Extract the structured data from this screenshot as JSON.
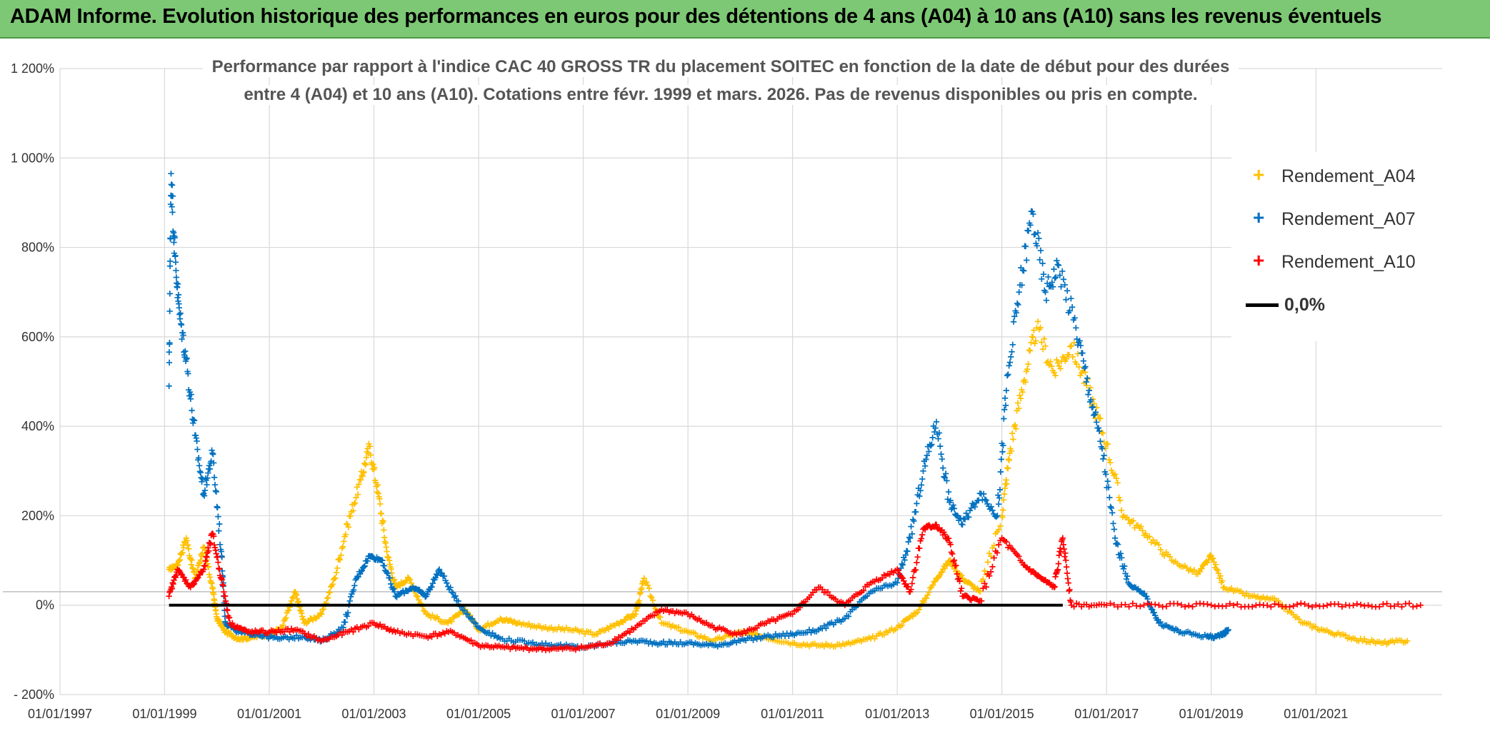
{
  "banner": {
    "title": "ADAM Informe. Evolution historique des performances en euros pour des détentions de 4 ans (A04) à 10 ans (A10) sans les revenus éventuels"
  },
  "colors": {
    "banner_bg": "#7dc874",
    "A04": "#ffc000",
    "A07": "#0070c0",
    "A10": "#ff0000",
    "zero_line": "#000000",
    "grid": "#d9d9d9"
  },
  "chart_data": {
    "type": "scatter",
    "title_line1": "Performance  par rapport à l'indice CAC 40 GROSS TR  du placement SOITEC en fonction de la date de début pour des durées",
    "title_line2": "entre 4 (A04) et 10 ans (A10). Cotations entre févr. 1999 et mars. 2026. Pas de revenus disponibles ou pris en compte.",
    "xlabel": "",
    "ylabel": "",
    "x_range": [
      "1997-01-01",
      "2023-06-01"
    ],
    "x_ticks": [
      "01/01/1997",
      "01/01/1999",
      "01/01/2001",
      "01/01/2003",
      "01/01/2005",
      "01/01/2007",
      "01/01/2009",
      "01/01/2011",
      "01/01/2013",
      "01/01/2015",
      "01/01/2017",
      "01/01/2019",
      "01/01/2021"
    ],
    "y_range": [
      -200,
      1200
    ],
    "y_ticks": [
      "- 200%",
      "0%",
      "200%",
      "400%",
      "600%",
      "800%",
      "1 000%",
      "1 200%"
    ],
    "grid": true,
    "legend_position": "top-right",
    "series": [
      {
        "name": "Rendement_A04",
        "marker": "+",
        "color": "#ffc000",
        "points": [
          [
            "1999-02-01",
            80
          ],
          [
            "1999-04-01",
            90
          ],
          [
            "1999-06-01",
            150
          ],
          [
            "1999-08-01",
            60
          ],
          [
            "1999-10-01",
            130
          ],
          [
            "1999-12-01",
            40
          ],
          [
            "2000-01-01",
            -30
          ],
          [
            "2000-03-01",
            -60
          ],
          [
            "2000-06-01",
            -75
          ],
          [
            "2000-09-01",
            -72
          ],
          [
            "2001-01-01",
            -65
          ],
          [
            "2001-04-01",
            -50
          ],
          [
            "2001-07-01",
            30
          ],
          [
            "2001-09-01",
            -40
          ],
          [
            "2002-01-01",
            -20
          ],
          [
            "2002-04-01",
            60
          ],
          [
            "2002-07-01",
            180
          ],
          [
            "2002-10-01",
            280
          ],
          [
            "2002-12-01",
            355
          ],
          [
            "2003-02-01",
            250
          ],
          [
            "2003-04-01",
            120
          ],
          [
            "2003-06-01",
            40
          ],
          [
            "2003-09-01",
            60
          ],
          [
            "2004-01-01",
            -20
          ],
          [
            "2004-06-01",
            -40
          ],
          [
            "2004-10-01",
            -10
          ],
          [
            "2005-01-01",
            -55
          ],
          [
            "2005-06-01",
            -30
          ],
          [
            "2005-10-01",
            -40
          ],
          [
            "2006-04-01",
            -50
          ],
          [
            "2006-10-01",
            -55
          ],
          [
            "2007-04-01",
            -65
          ],
          [
            "2007-09-01",
            -40
          ],
          [
            "2008-01-01",
            -20
          ],
          [
            "2008-03-01",
            60
          ],
          [
            "2008-07-01",
            -40
          ],
          [
            "2009-01-01",
            -60
          ],
          [
            "2009-07-01",
            -80
          ],
          [
            "2010-01-01",
            -60
          ],
          [
            "2010-06-01",
            -70
          ],
          [
            "2011-01-01",
            -85
          ],
          [
            "2011-07-01",
            -90
          ],
          [
            "2012-01-01",
            -88
          ],
          [
            "2012-07-01",
            -75
          ],
          [
            "2013-01-01",
            -50
          ],
          [
            "2013-06-01",
            -10
          ],
          [
            "2013-10-01",
            60
          ],
          [
            "2014-01-01",
            100
          ],
          [
            "2014-04-01",
            60
          ],
          [
            "2014-08-01",
            30
          ],
          [
            "2015-01-01",
            200
          ],
          [
            "2015-03-01",
            350
          ],
          [
            "2015-06-01",
            500
          ],
          [
            "2015-09-01",
            620
          ],
          [
            "2016-01-01",
            520
          ],
          [
            "2016-05-01",
            580
          ],
          [
            "2016-09-01",
            480
          ],
          [
            "2017-01-01",
            360
          ],
          [
            "2017-05-01",
            200
          ],
          [
            "2017-10-01",
            160
          ],
          [
            "2018-04-01",
            100
          ],
          [
            "2018-10-01",
            70
          ],
          [
            "2019-01-01",
            110
          ],
          [
            "2019-04-01",
            40
          ],
          [
            "2019-10-01",
            20
          ],
          [
            "2020-04-01",
            10
          ],
          [
            "2020-10-01",
            -40
          ],
          [
            "2021-04-01",
            -60
          ],
          [
            "2021-10-01",
            -75
          ],
          [
            "2022-04-01",
            -85
          ],
          [
            "2022-10-01",
            -80
          ]
        ]
      },
      {
        "name": "Rendement_A07",
        "marker": "+",
        "color": "#0070c0",
        "points": [
          [
            "1999-02-01",
            490
          ],
          [
            "1999-02-15",
            965
          ],
          [
            "1999-03-15",
            780
          ],
          [
            "1999-04-15",
            650
          ],
          [
            "1999-06-01",
            550
          ],
          [
            "1999-08-01",
            380
          ],
          [
            "1999-10-01",
            250
          ],
          [
            "1999-12-01",
            340
          ],
          [
            "2000-02-01",
            120
          ],
          [
            "2000-03-01",
            -40
          ],
          [
            "2000-06-01",
            -60
          ],
          [
            "2000-10-01",
            -65
          ],
          [
            "2001-03-01",
            -75
          ],
          [
            "2001-09-01",
            -70
          ],
          [
            "2002-01-01",
            -80
          ],
          [
            "2002-06-01",
            -50
          ],
          [
            "2002-09-01",
            60
          ],
          [
            "2002-12-01",
            110
          ],
          [
            "2003-03-01",
            100
          ],
          [
            "2003-06-01",
            20
          ],
          [
            "2003-10-01",
            40
          ],
          [
            "2004-01-01",
            20
          ],
          [
            "2004-04-01",
            80
          ],
          [
            "2004-08-01",
            10
          ],
          [
            "2005-01-01",
            -50
          ],
          [
            "2005-06-01",
            -75
          ],
          [
            "2006-01-01",
            -85
          ],
          [
            "2006-07-01",
            -90
          ],
          [
            "2007-01-01",
            -95
          ],
          [
            "2007-07-01",
            -85
          ],
          [
            "2008-01-01",
            -80
          ],
          [
            "2008-07-01",
            -85
          ],
          [
            "2009-01-01",
            -85
          ],
          [
            "2009-07-01",
            -90
          ],
          [
            "2010-01-01",
            -80
          ],
          [
            "2010-07-01",
            -70
          ],
          [
            "2011-01-01",
            -65
          ],
          [
            "2011-07-01",
            -55
          ],
          [
            "2012-01-01",
            -30
          ],
          [
            "2012-07-01",
            30
          ],
          [
            "2013-01-01",
            50
          ],
          [
            "2013-04-01",
            150
          ],
          [
            "2013-07-01",
            300
          ],
          [
            "2013-10-01",
            410
          ],
          [
            "2014-01-01",
            230
          ],
          [
            "2014-04-01",
            180
          ],
          [
            "2014-08-01",
            250
          ],
          [
            "2014-12-01",
            200
          ],
          [
            "2015-02-01",
            480
          ],
          [
            "2015-05-01",
            700
          ],
          [
            "2015-08-01",
            880
          ],
          [
            "2015-11-01",
            700
          ],
          [
            "2016-02-01",
            760
          ],
          [
            "2016-06-01",
            620
          ],
          [
            "2016-09-01",
            480
          ],
          [
            "2016-12-01",
            350
          ],
          [
            "2017-03-01",
            150
          ],
          [
            "2017-06-01",
            50
          ],
          [
            "2017-10-01",
            20
          ],
          [
            "2018-01-01",
            -40
          ],
          [
            "2018-06-01",
            -60
          ],
          [
            "2018-12-01",
            -70
          ],
          [
            "2019-03-01",
            -70
          ],
          [
            "2019-05-01",
            -55
          ]
        ]
      },
      {
        "name": "Rendement_A10",
        "marker": "+",
        "color": "#ff0000",
        "points": [
          [
            "1999-02-01",
            20
          ],
          [
            "1999-04-01",
            80
          ],
          [
            "1999-07-01",
            40
          ],
          [
            "1999-10-01",
            80
          ],
          [
            "1999-12-01",
            160
          ],
          [
            "2000-02-01",
            60
          ],
          [
            "2000-04-01",
            -40
          ],
          [
            "2000-08-01",
            -60
          ],
          [
            "2001-01-01",
            -60
          ],
          [
            "2001-07-01",
            -55
          ],
          [
            "2002-01-01",
            -80
          ],
          [
            "2002-07-01",
            -60
          ],
          [
            "2003-01-01",
            -40
          ],
          [
            "2003-06-01",
            -60
          ],
          [
            "2004-01-01",
            -70
          ],
          [
            "2004-07-01",
            -60
          ],
          [
            "2005-01-01",
            -90
          ],
          [
            "2005-07-01",
            -95
          ],
          [
            "2006-01-01",
            -97
          ],
          [
            "2006-07-01",
            -98
          ],
          [
            "2007-01-01",
            -95
          ],
          [
            "2007-07-01",
            -85
          ],
          [
            "2008-01-01",
            -50
          ],
          [
            "2008-07-01",
            -10
          ],
          [
            "2009-01-01",
            -20
          ],
          [
            "2009-07-01",
            -50
          ],
          [
            "2010-01-01",
            -65
          ],
          [
            "2010-07-01",
            -40
          ],
          [
            "2011-01-01",
            -20
          ],
          [
            "2011-07-01",
            40
          ],
          [
            "2012-01-01",
            0
          ],
          [
            "2012-07-01",
            50
          ],
          [
            "2013-01-01",
            80
          ],
          [
            "2013-04-01",
            30
          ],
          [
            "2013-07-01",
            170
          ],
          [
            "2013-10-01",
            180
          ],
          [
            "2014-01-01",
            140
          ],
          [
            "2014-04-01",
            20
          ],
          [
            "2014-08-01",
            10
          ],
          [
            "2015-01-01",
            150
          ],
          [
            "2015-06-01",
            90
          ],
          [
            "2015-10-01",
            60
          ],
          [
            "2016-01-01",
            40
          ],
          [
            "2016-03-01",
            150
          ],
          [
            "2016-05-01",
            0
          ],
          [
            "2017-01-01",
            0
          ],
          [
            "2018-01-01",
            0
          ],
          [
            "2019-01-01",
            0
          ],
          [
            "2020-01-01",
            0
          ],
          [
            "2021-01-01",
            0
          ],
          [
            "2022-01-01",
            0
          ],
          [
            "2023-01-01",
            0
          ]
        ]
      }
    ],
    "zero_line": {
      "name": "0,0%",
      "from": "1999-02-01",
      "to": "2016-03-01",
      "value": 0
    }
  },
  "legend": {
    "items": [
      {
        "label": "Rendement_A04",
        "marker": "+"
      },
      {
        "label": "Rendement_A07",
        "marker": "+"
      },
      {
        "label": "Rendement_A10",
        "marker": "+"
      },
      {
        "label": "0,0%"
      }
    ]
  }
}
